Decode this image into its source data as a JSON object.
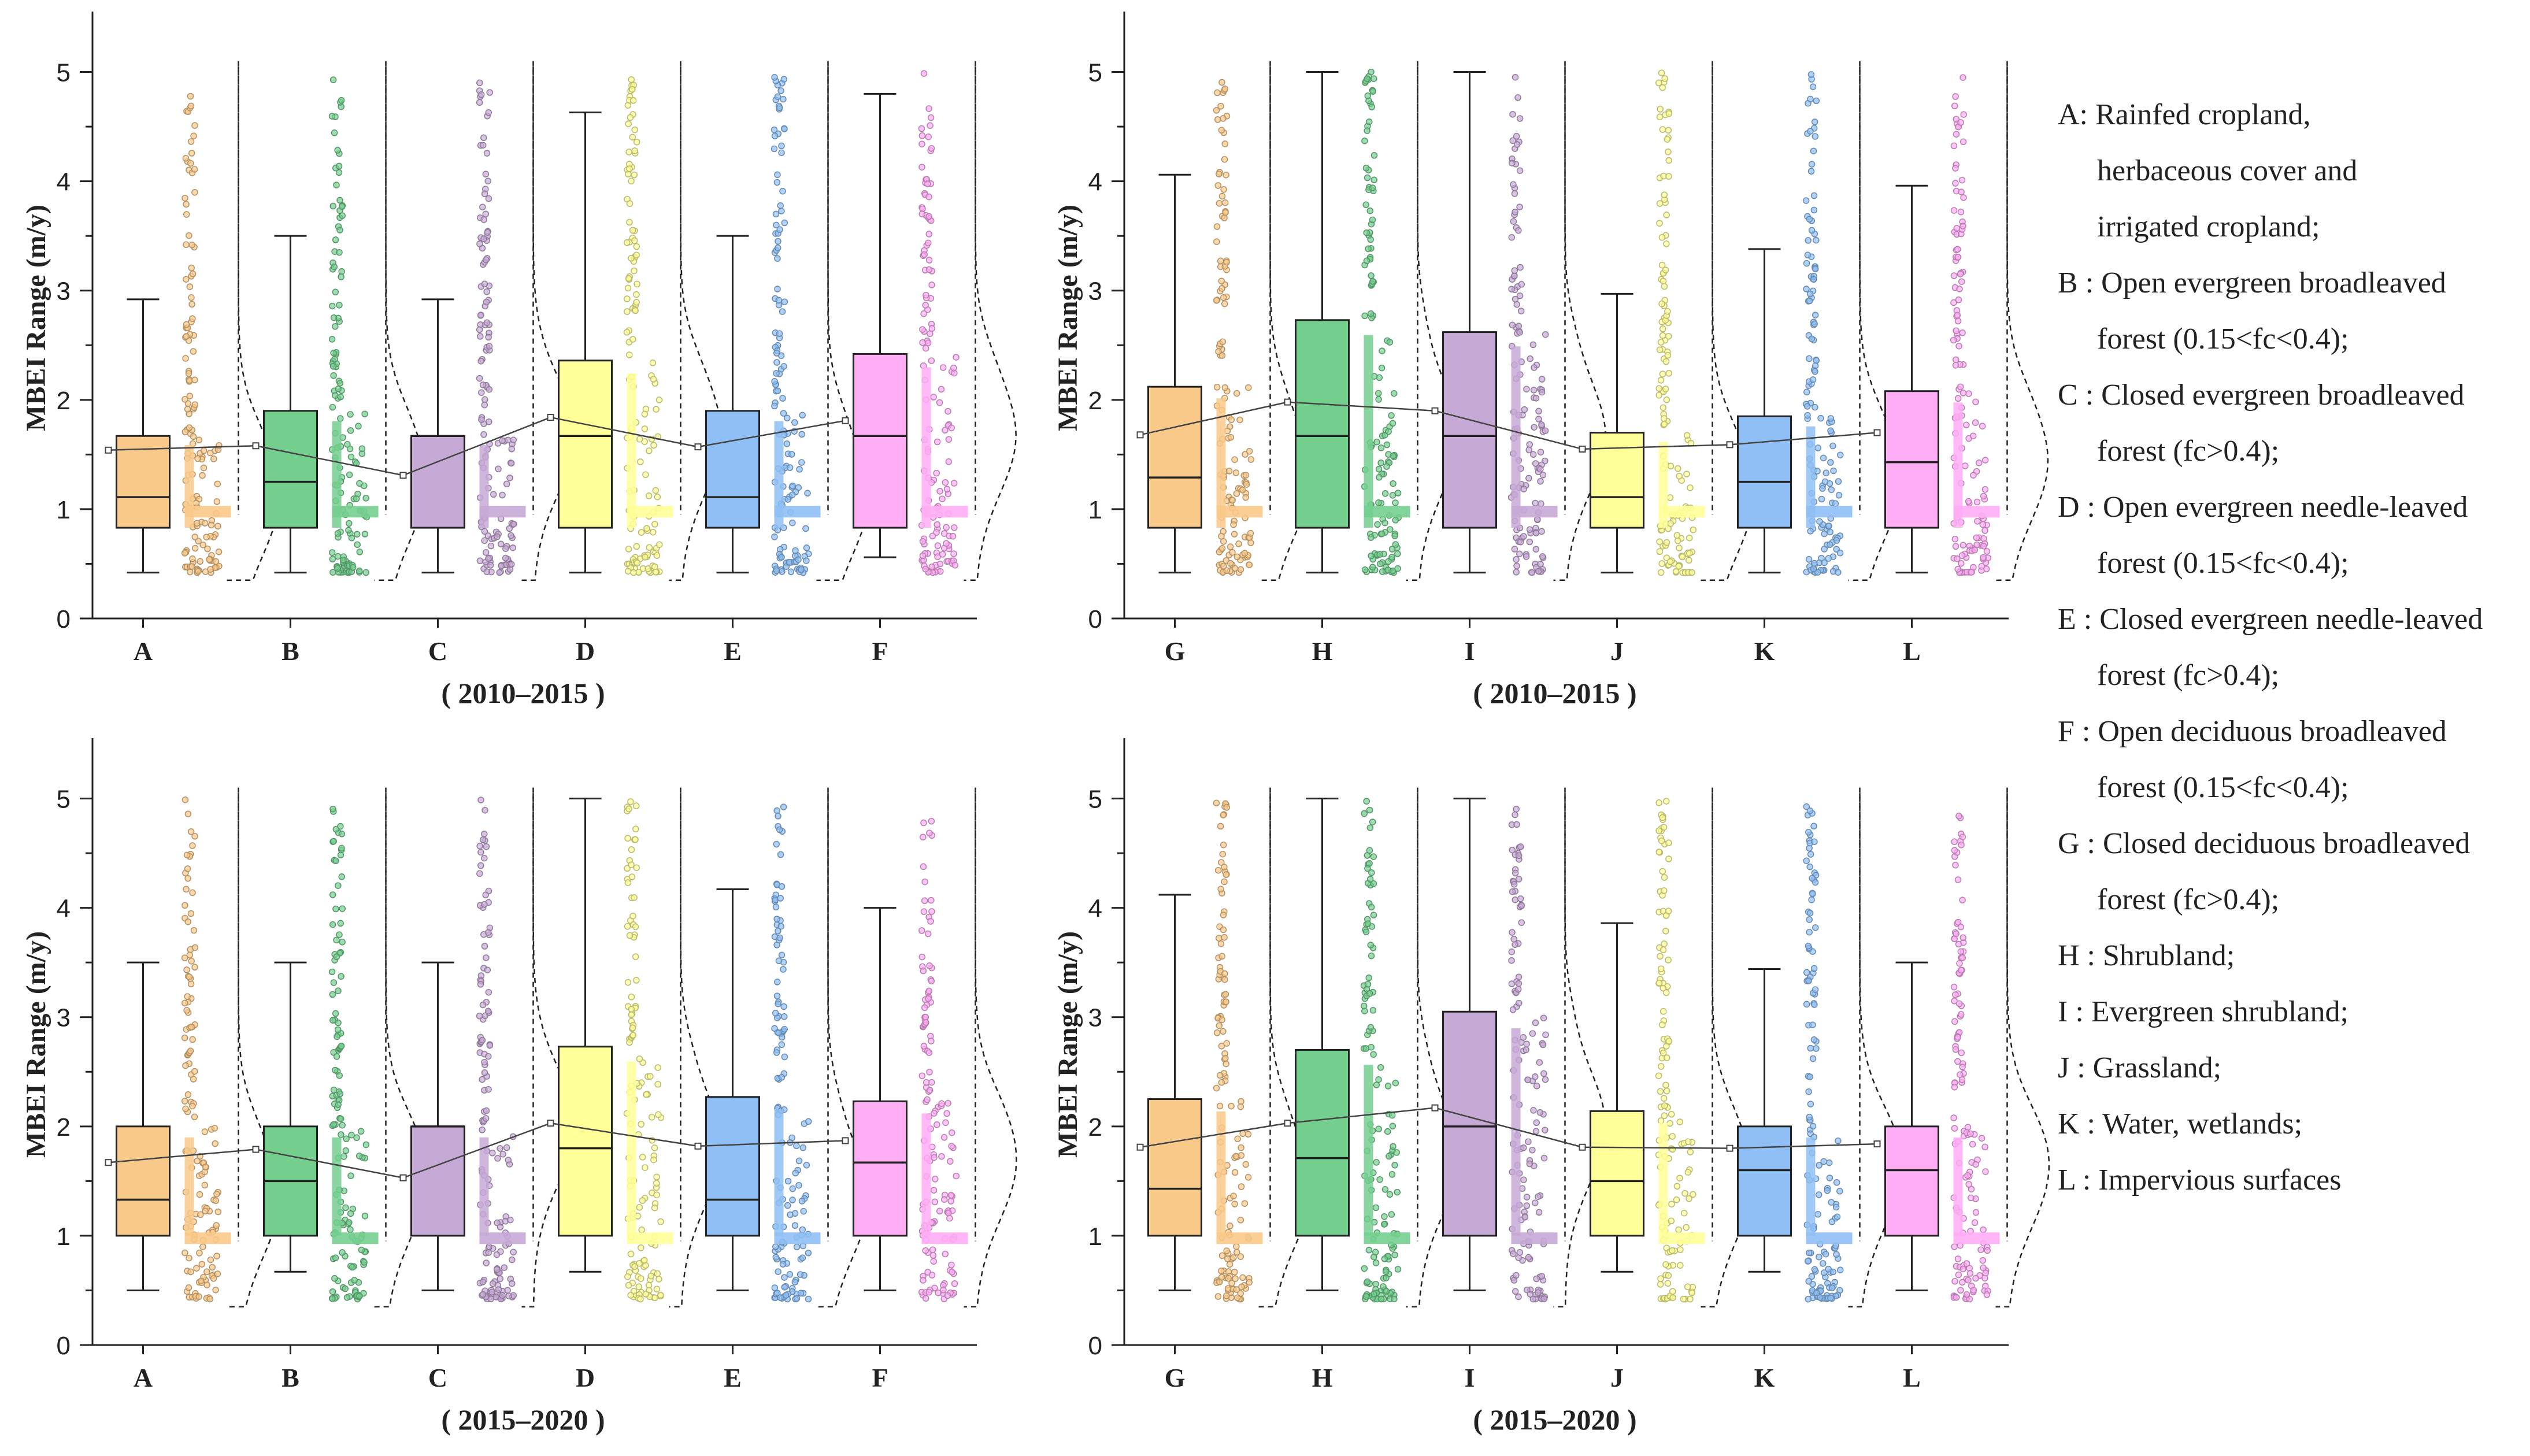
{
  "figure": {
    "ylabel": "MBEI Range (m/y)",
    "yticks": [
      "0",
      "1",
      "2",
      "3",
      "4",
      "5"
    ]
  },
  "chart_data": [
    {
      "type": "box",
      "panel": "top-left",
      "title": "( 2010–2015 )",
      "ylabel": "MBEI Range (m/y)",
      "ylim": [
        0,
        5.5
      ],
      "categories": [
        "A",
        "B",
        "C",
        "D",
        "E",
        "F"
      ],
      "colors": [
        "#f9c98a",
        "#74cf8f",
        "#c7a9d6",
        "#ffff99",
        "#8fbff5",
        "#ffadf5"
      ],
      "whisker_low": [
        0.42,
        0.42,
        0.42,
        0.42,
        0.42,
        0.56
      ],
      "q1": [
        0.83,
        0.83,
        0.83,
        0.83,
        0.83,
        0.83
      ],
      "median": [
        1.11,
        1.25,
        1.67,
        1.67,
        1.11,
        1.67
      ],
      "q3": [
        1.67,
        1.9,
        1.67,
        2.36,
        1.9,
        2.42
      ],
      "whisker_high": [
        2.92,
        3.5,
        2.92,
        4.63,
        3.5,
        4.8
      ],
      "mean": [
        1.54,
        1.58,
        1.31,
        1.84,
        1.57,
        1.81
      ]
    },
    {
      "type": "box",
      "panel": "top-right",
      "title": "( 2010–2015 )",
      "ylabel": "MBEI Range (m/y)",
      "ylim": [
        0,
        5.5
      ],
      "categories": [
        "G",
        "H",
        "I",
        "J",
        "K",
        "L"
      ],
      "colors": [
        "#f9c98a",
        "#74cf8f",
        "#c7a9d6",
        "#ffff99",
        "#8fbff5",
        "#ffadf5"
      ],
      "whisker_low": [
        0.42,
        0.42,
        0.42,
        0.42,
        0.42,
        0.42
      ],
      "q1": [
        0.83,
        0.83,
        0.83,
        0.83,
        0.83,
        0.83
      ],
      "median": [
        1.29,
        1.67,
        1.67,
        1.11,
        1.25,
        1.43
      ],
      "q3": [
        2.12,
        2.73,
        2.62,
        1.7,
        1.85,
        2.08
      ],
      "whisker_high": [
        4.06,
        5.0,
        5.0,
        2.97,
        3.38,
        3.96
      ],
      "mean": [
        1.68,
        1.98,
        1.9,
        1.55,
        1.59,
        1.7
      ]
    },
    {
      "type": "box",
      "panel": "bottom-left",
      "title": "( 2015–2020 )",
      "ylabel": "MBEI Range (m/y)",
      "ylim": [
        0,
        5.5
      ],
      "categories": [
        "A",
        "B",
        "C",
        "D",
        "E",
        "F"
      ],
      "colors": [
        "#f9c98a",
        "#74cf8f",
        "#c7a9d6",
        "#ffff99",
        "#8fbff5",
        "#ffadf5"
      ],
      "whisker_low": [
        0.5,
        0.67,
        0.5,
        0.67,
        0.5,
        0.5
      ],
      "q1": [
        1.0,
        1.0,
        1.0,
        1.0,
        1.0,
        1.0
      ],
      "median": [
        1.33,
        1.5,
        2.0,
        1.8,
        1.33,
        1.67
      ],
      "q3": [
        2.0,
        2.0,
        2.0,
        2.73,
        2.27,
        2.23
      ],
      "whisker_high": [
        3.5,
        3.5,
        3.5,
        5.0,
        4.17,
        4.0
      ],
      "mean": [
        1.67,
        1.79,
        1.53,
        2.03,
        1.82,
        1.87
      ]
    },
    {
      "type": "box",
      "panel": "bottom-right",
      "title": "( 2015–2020 )",
      "ylabel": "MBEI Range (m/y)",
      "ylim": [
        0,
        5.5
      ],
      "categories": [
        "G",
        "H",
        "I",
        "J",
        "K",
        "L"
      ],
      "colors": [
        "#f9c98a",
        "#74cf8f",
        "#c7a9d6",
        "#ffff99",
        "#8fbff5",
        "#ffadf5"
      ],
      "whisker_low": [
        0.5,
        0.5,
        0.5,
        0.67,
        0.67,
        0.5
      ],
      "q1": [
        1.0,
        1.0,
        1.0,
        1.0,
        1.0,
        1.0
      ],
      "median": [
        1.43,
        1.71,
        2.0,
        1.5,
        1.6,
        1.6
      ],
      "q3": [
        2.25,
        2.7,
        3.05,
        2.14,
        2.0,
        2.0
      ],
      "whisker_high": [
        4.12,
        5.0,
        5.0,
        3.86,
        3.44,
        3.5
      ],
      "mean": [
        1.81,
        2.03,
        2.17,
        1.81,
        1.8,
        1.84
      ]
    }
  ],
  "legend": [
    [
      "A: Rainfed cropland,",
      "herbaceous cover and",
      "irrigated cropland;"
    ],
    [
      "B : Open evergreen broadleaved",
      "forest (0.15<fc<0.4);"
    ],
    [
      "C : Closed evergreen broadleaved",
      "forest (fc>0.4);"
    ],
    [
      "D : Open evergreen needle-leaved",
      "forest (0.15<fc<0.4);"
    ],
    [
      "E : Closed evergreen needle-leaved",
      "forest (fc>0.4);"
    ],
    [
      "F : Open deciduous broadleaved",
      "forest (0.15<fc<0.4);"
    ],
    [
      "G : Closed deciduous broadleaved",
      "forest (fc>0.4);"
    ],
    [
      "H : Shrubland;"
    ],
    [
      "I : Evergreen shrubland;"
    ],
    [
      "J : Grassland;"
    ],
    [
      "K : Water,  wetlands;"
    ],
    [
      "L : Impervious surfaces"
    ]
  ]
}
